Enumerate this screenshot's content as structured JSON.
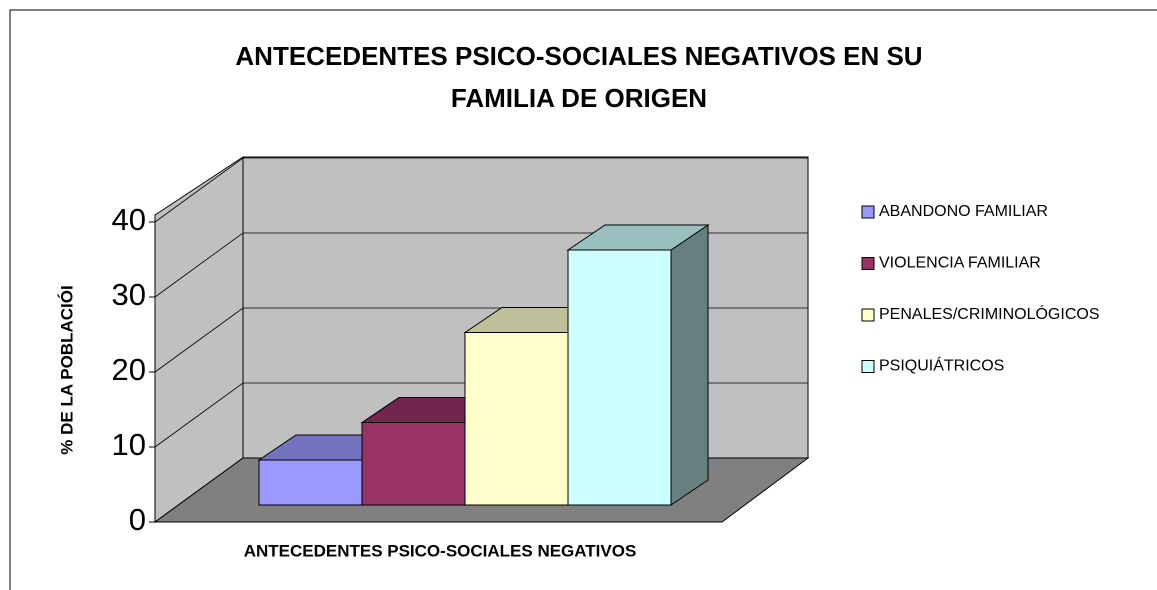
{
  "chart_data": {
    "type": "bar3d",
    "title": [
      "ANTECEDENTES PSICO-SOCIALES NEGATIVOS EN SU",
      "FAMILIA DE ORIGEN"
    ],
    "x_label": "ANTECEDENTES PSICO-SOCIALES NEGATIVOS",
    "y_label": "% DE LA POBLACIÓI",
    "series": [
      {
        "name": "ABANDONO FAMILIAR",
        "color": "#9999ff",
        "values": [
          6
        ]
      },
      {
        "name": "VIOLENCIA FAMILIAR",
        "color": "#993366",
        "values": [
          11
        ]
      },
      {
        "name": "PENALES/CRIMINOLÓGICOS",
        "color": "#ffffcc",
        "values": [
          23
        ]
      },
      {
        "name": "PSIQUIÁTRICOS",
        "color": "#ccffff",
        "values": [
          34
        ]
      }
    ],
    "ylim": [
      0,
      40
    ],
    "yticks": [
      0,
      10,
      20,
      30,
      40
    ],
    "grid": true,
    "legend": "right"
  }
}
